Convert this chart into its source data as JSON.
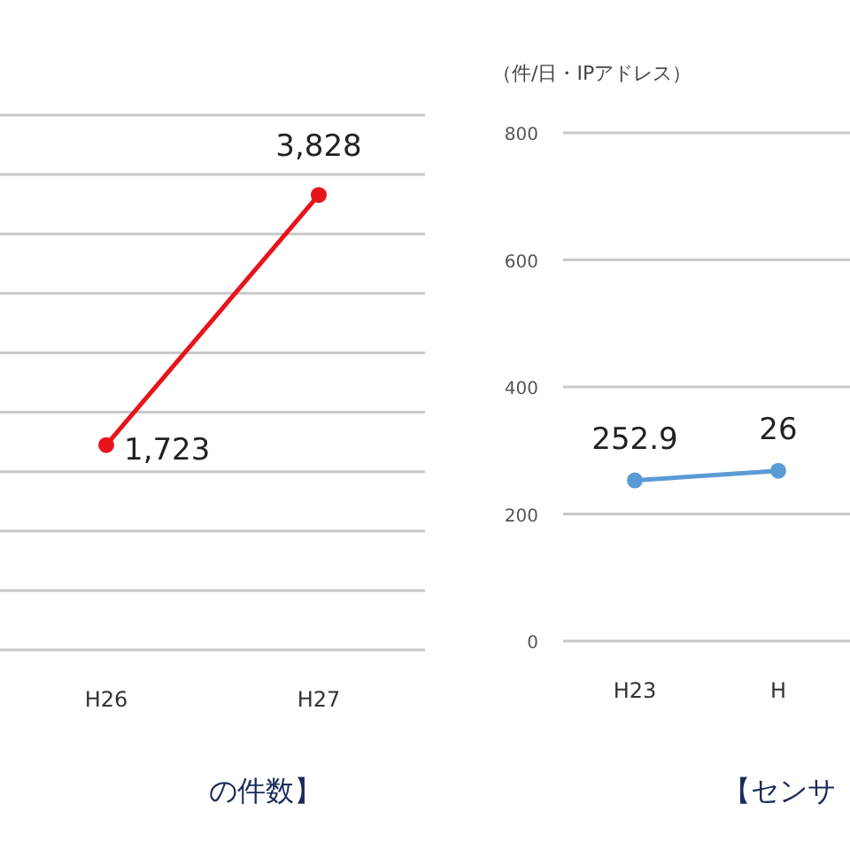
{
  "chart_data": [
    {
      "type": "line",
      "categories": [
        "H26",
        "H27"
      ],
      "ylim": [
        0,
        4500
      ],
      "yticks": [
        {
          "value": 0,
          "label": null
        },
        {
          "value": 500,
          "label": null
        },
        {
          "value": 1000,
          "label": null
        },
        {
          "value": 1500,
          "label": null
        },
        {
          "value": 2000,
          "label": null
        },
        {
          "value": 2500,
          "label": null
        },
        {
          "value": 3000,
          "label": null
        },
        {
          "value": 3500,
          "label": null
        },
        {
          "value": 4000,
          "label": null
        },
        {
          "value": 4500,
          "label": null
        }
      ],
      "grid": "y",
      "tick_labels": "x",
      "marker": "circle",
      "series": [
        {
          "color": "#e8141b",
          "values": [
            1723,
            3828
          ],
          "value_labels": [
            "1,723",
            "3,828"
          ]
        }
      ],
      "annotations": [
        "の件数】"
      ]
    },
    {
      "type": "line",
      "categories": [
        "H23",
        "H"
      ],
      "ylabel": "（件/日・IPアドレス）",
      "ylim": [
        0,
        800
      ],
      "yticks": [
        0,
        200,
        400,
        600,
        800
      ],
      "grid": "y",
      "marker": "circle",
      "series": [
        {
          "color": "#5b9bd5",
          "values": [
            252.9,
            268
          ],
          "value_labels": [
            "252.9",
            null
          ]
        }
      ],
      "annotations": [
        "【センサ",
        {
          "text": "26",
          "x": "H",
          "y": 268
        }
      ]
    }
  ]
}
